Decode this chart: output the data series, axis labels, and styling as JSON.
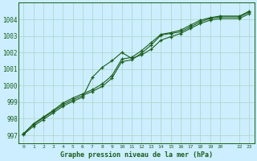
{
  "title": "Graphe pression niveau de la mer (hPa)",
  "background_color": "#cceeff",
  "grid_color": "#b0d8cc",
  "line_color": "#1a5e1a",
  "xlim": [
    -0.5,
    23.5
  ],
  "ylim": [
    996.5,
    1005.0
  ],
  "yticks": [
    997,
    998,
    999,
    1000,
    1001,
    1002,
    1003,
    1004
  ],
  "xticks": [
    0,
    1,
    2,
    3,
    4,
    5,
    6,
    7,
    8,
    9,
    10,
    11,
    12,
    13,
    14,
    15,
    16,
    17,
    18,
    19,
    20,
    22,
    23
  ],
  "xtick_labels": [
    "0",
    "1",
    "2",
    "3",
    "4",
    "5",
    "6",
    "7",
    "8",
    "9",
    "10",
    "11",
    "12",
    "13",
    "14",
    "15",
    "16",
    "17",
    "18",
    "19",
    "20",
    "22",
    "23"
  ],
  "series1_x": [
    0,
    1,
    2,
    3,
    4,
    5,
    6,
    7,
    8,
    9,
    10,
    11,
    12,
    13,
    14,
    15,
    16,
    17,
    18,
    19,
    20,
    22,
    23
  ],
  "series1_y": [
    997.1,
    997.65,
    998.05,
    998.45,
    998.85,
    999.15,
    999.4,
    999.65,
    999.95,
    1000.45,
    1001.45,
    1001.55,
    1001.95,
    1002.45,
    1003.05,
    1003.15,
    1003.25,
    1003.55,
    1003.85,
    1004.05,
    1004.15,
    1004.15,
    1004.45
  ],
  "series2_x": [
    0,
    1,
    2,
    3,
    4,
    5,
    6,
    7,
    8,
    9,
    10,
    11,
    12,
    13,
    14,
    15,
    16,
    17,
    18,
    19,
    20,
    22,
    23
  ],
  "series2_y": [
    997.05,
    997.55,
    997.95,
    998.35,
    998.75,
    999.05,
    999.3,
    1000.5,
    1001.1,
    1001.5,
    1002.0,
    1001.65,
    1001.85,
    1002.2,
    1002.75,
    1002.95,
    1003.15,
    1003.45,
    1003.75,
    1003.95,
    1004.05,
    1004.05,
    1004.35
  ],
  "series3_x": [
    0,
    1,
    2,
    3,
    4,
    5,
    6,
    7,
    8,
    9,
    10,
    11,
    12,
    13,
    14,
    15,
    16,
    17,
    18,
    19,
    20,
    22,
    23
  ],
  "series3_y": [
    997.1,
    997.7,
    998.1,
    998.5,
    998.95,
    999.25,
    999.5,
    999.75,
    1000.1,
    1000.6,
    1001.6,
    1001.7,
    1002.1,
    1002.6,
    1003.1,
    1003.2,
    1003.35,
    1003.65,
    1003.95,
    1004.1,
    1004.2,
    1004.2,
    1004.5
  ]
}
